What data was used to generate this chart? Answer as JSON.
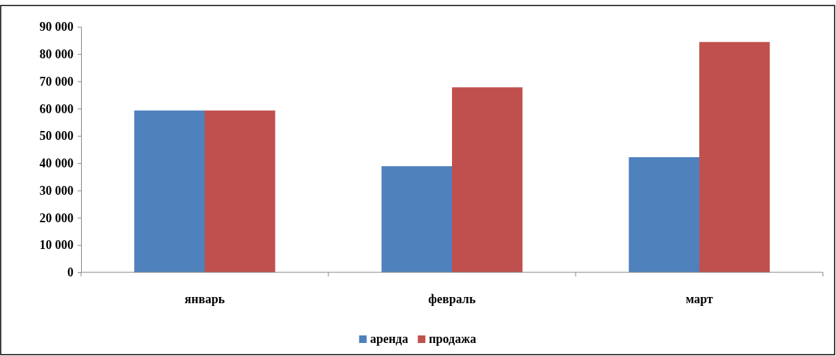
{
  "chart_data": {
    "type": "bar",
    "categories": [
      "январь",
      "февраль",
      "март"
    ],
    "series": [
      {
        "name": "аренда",
        "color": "#4f81bd",
        "values": [
          59300,
          38900,
          42200
        ]
      },
      {
        "name": "продажа",
        "color": "#c0504d",
        "values": [
          59300,
          67800,
          84400
        ]
      }
    ],
    "ylim": [
      0,
      90000
    ],
    "yticks": [
      {
        "value": 0,
        "label": "0"
      },
      {
        "value": 10000,
        "label": "10 000"
      },
      {
        "value": 20000,
        "label": "20 000"
      },
      {
        "value": 30000,
        "label": "30 000"
      },
      {
        "value": 40000,
        "label": "40 000"
      },
      {
        "value": 50000,
        "label": "50 000"
      },
      {
        "value": 60000,
        "label": "60 000"
      },
      {
        "value": 70000,
        "label": "70 000"
      },
      {
        "value": 80000,
        "label": "80 000"
      },
      {
        "value": 90000,
        "label": "90 000"
      }
    ],
    "grid": false,
    "legend": "bottom"
  }
}
